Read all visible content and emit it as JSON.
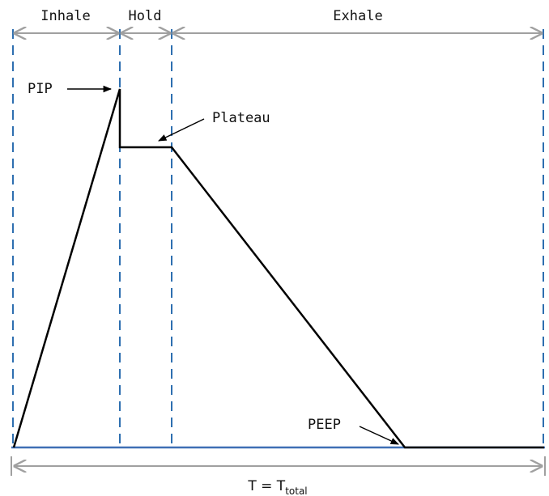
{
  "phases": {
    "inhale": "Inhale",
    "hold": "Hold",
    "exhale": "Exhale"
  },
  "annotations": {
    "pip": "PIP",
    "plateau": "Plateau",
    "peep": "PEEP"
  },
  "total": {
    "prefix": "T  =  T",
    "subscript": "total"
  },
  "colors": {
    "guide": "#2e6fb0",
    "arrow": "#a0a0a0",
    "curve": "#000000",
    "baseline": "#3f6fb5"
  }
}
